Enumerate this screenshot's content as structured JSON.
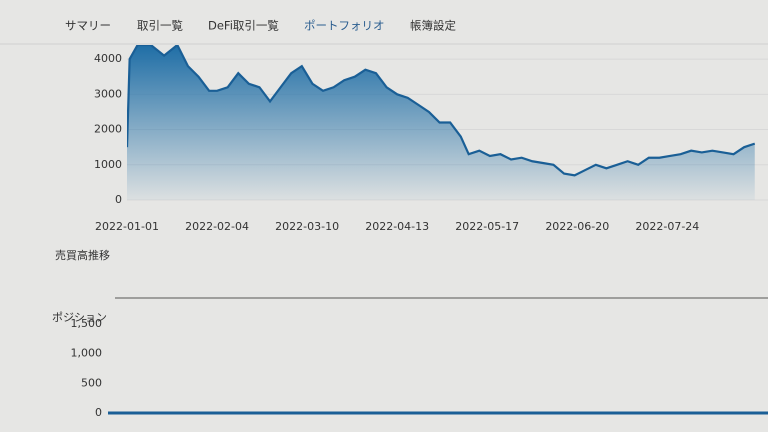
{
  "nav": [
    "サマリー",
    "取引一覧",
    "DeFi取引一覧",
    "ポートフォリオ",
    "帳簿設定"
  ],
  "section_title": "売買高推移",
  "chart_data": [
    {
      "type": "area",
      "color": "#1a5f96",
      "x": [
        "2022-01-01",
        "2022-01-02",
        "2022-01-05",
        "2022-01-10",
        "2022-01-15",
        "2022-01-20",
        "2022-01-24",
        "2022-01-28",
        "2022-02-01",
        "2022-02-04",
        "2022-02-08",
        "2022-02-12",
        "2022-02-16",
        "2022-02-20",
        "2022-02-24",
        "2022-02-28",
        "2022-03-04",
        "2022-03-08",
        "2022-03-12",
        "2022-03-16",
        "2022-03-20",
        "2022-03-24",
        "2022-03-28",
        "2022-04-01",
        "2022-04-05",
        "2022-04-09",
        "2022-04-13",
        "2022-04-17",
        "2022-04-21",
        "2022-04-25",
        "2022-04-29",
        "2022-05-03",
        "2022-05-07",
        "2022-05-10",
        "2022-05-14",
        "2022-05-18",
        "2022-05-22",
        "2022-05-26",
        "2022-05-30",
        "2022-06-03",
        "2022-06-07",
        "2022-06-11",
        "2022-06-15",
        "2022-06-19",
        "2022-06-23",
        "2022-06-27",
        "2022-07-01",
        "2022-07-05",
        "2022-07-09",
        "2022-07-13",
        "2022-07-17",
        "2022-07-21",
        "2022-07-25",
        "2022-07-29",
        "2022-08-02",
        "2022-08-06",
        "2022-08-10",
        "2022-08-14",
        "2022-08-18",
        "2022-08-22",
        "2022-08-26"
      ],
      "values": [
        1500,
        4000,
        4400,
        4400,
        4100,
        4400,
        3800,
        3500,
        3100,
        3100,
        3200,
        3600,
        3300,
        3200,
        2800,
        3200,
        3600,
        3800,
        3300,
        3100,
        3200,
        3400,
        3500,
        3700,
        3600,
        3200,
        3000,
        2900,
        2700,
        2500,
        2200,
        2200,
        1800,
        1300,
        1400,
        1250,
        1300,
        1150,
        1200,
        1100,
        1050,
        1000,
        750,
        700,
        850,
        1000,
        900,
        1000,
        1100,
        1000,
        1200,
        1200,
        1250,
        1300,
        1400,
        1350,
        1400,
        1350,
        1300,
        1500,
        1600
      ],
      "xlim": [
        "2022-01-01",
        "2022-08-31"
      ],
      "xticks": [
        "2022-01-01",
        "2022-02-04",
        "2022-03-10",
        "2022-04-13",
        "2022-05-17",
        "2022-06-20",
        "2022-07-24"
      ],
      "ylim": [
        0,
        4400
      ],
      "yticks": [
        0,
        1000,
        2000,
        3000,
        4000
      ],
      "grid": true
    },
    {
      "type": "line",
      "title": "ポジション",
      "color": "#1a5f96",
      "x": [
        "2022-01-01",
        "2022-08-31"
      ],
      "values": [
        0,
        0
      ],
      "xlim": [
        "2022-01-01",
        "2022-08-31"
      ],
      "ylim": [
        0,
        1600
      ],
      "yticks": [
        0,
        500,
        {
          "value": 1000,
          "label": "1,000"
        },
        {
          "value": 1500,
          "label": "1,500"
        }
      ]
    }
  ]
}
